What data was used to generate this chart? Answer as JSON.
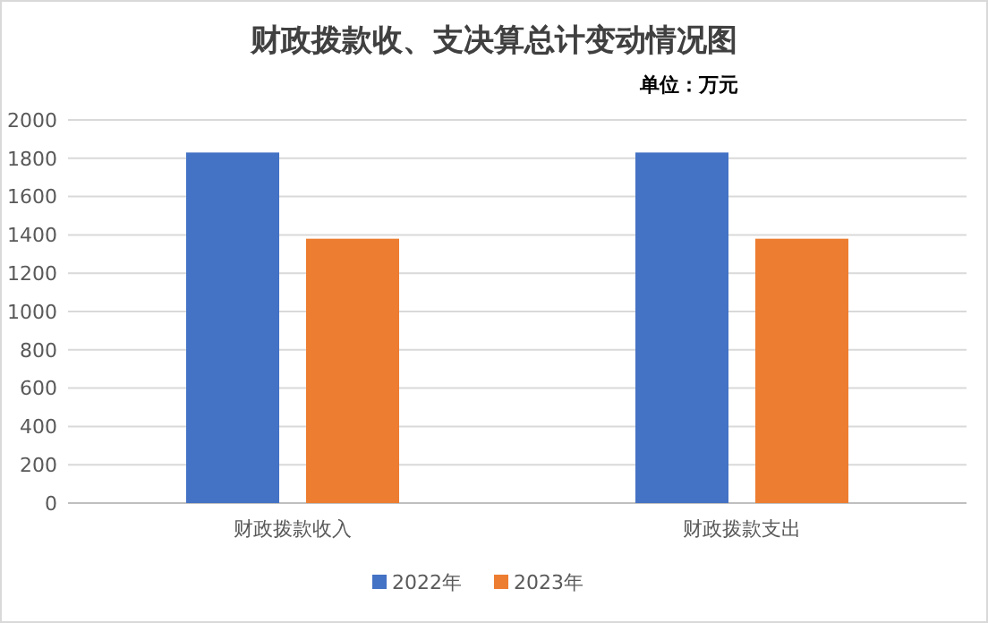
{
  "chart_data": {
    "type": "bar",
    "title": "财政拨款收、支决算总计变动情况图",
    "subtitle": "单位：万元",
    "categories": [
      "财政拨款收入",
      "财政拨款支出"
    ],
    "series": [
      {
        "name": "2022年",
        "color": "#4472c4",
        "values": [
          1830,
          1830
        ]
      },
      {
        "name": "2023年",
        "color": "#ed7d31",
        "values": [
          1380,
          1380
        ]
      }
    ],
    "ylim": [
      0,
      2000
    ],
    "yticks": [
      0,
      200,
      400,
      600,
      800,
      1000,
      1200,
      1400,
      1600,
      1800,
      2000
    ],
    "grid": "y",
    "legend": "bottom"
  }
}
